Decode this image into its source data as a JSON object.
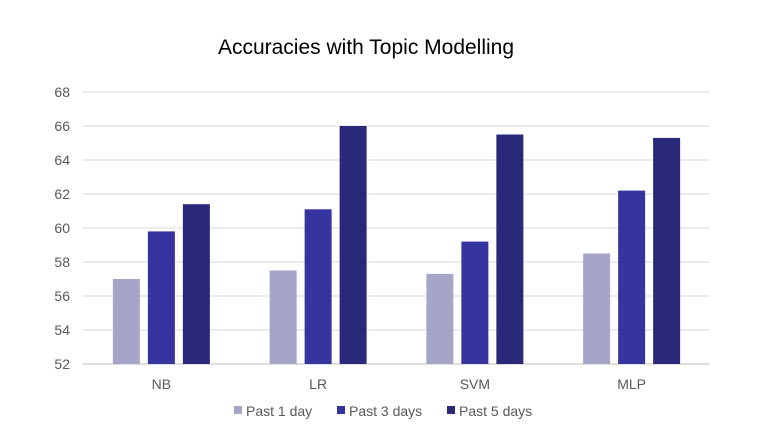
{
  "chart_data": {
    "type": "bar",
    "title": "Accuracies with Topic Modelling",
    "xlabel": "",
    "ylabel": "",
    "categories": [
      "NB",
      "LR",
      "SVM",
      "MLP"
    ],
    "series": [
      {
        "name": "Past 1 day",
        "color": "#a5a5c8",
        "values": [
          57.0,
          57.5,
          57.3,
          58.5
        ]
      },
      {
        "name": "Past 3 days",
        "color": "#36349e",
        "values": [
          59.8,
          61.1,
          59.2,
          62.2
        ]
      },
      {
        "name": "Past 5 days",
        "color": "#2a2878",
        "values": [
          61.4,
          66.0,
          65.5,
          65.3
        ]
      }
    ],
    "ylim": [
      52,
      68
    ],
    "yticks": [
      52,
      54,
      56,
      58,
      60,
      62,
      64,
      66,
      68
    ],
    "grid": true,
    "legend_position": "bottom"
  }
}
